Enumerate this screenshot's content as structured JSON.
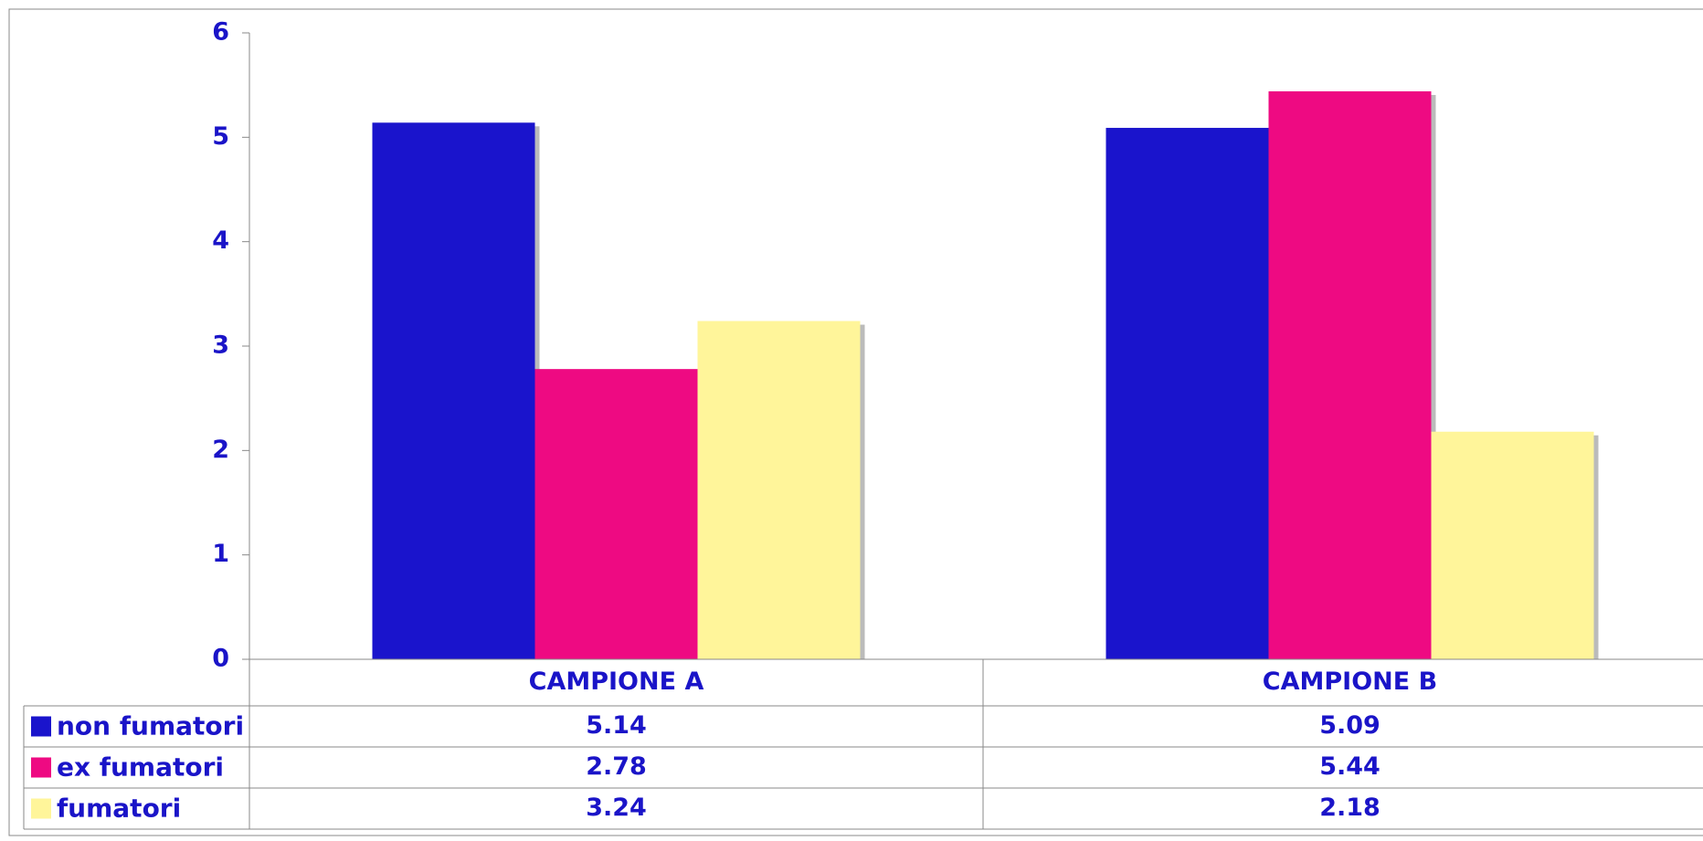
{
  "chart_data": {
    "type": "bar",
    "categories": [
      "CAMPIONE A",
      "CAMPIONE B"
    ],
    "series": [
      {
        "name": "non fumatori",
        "color": "#1a14cc",
        "values": [
          5.14,
          5.09
        ]
      },
      {
        "name": "ex fumatori",
        "color": "#ee0a82",
        "values": [
          2.78,
          5.44
        ]
      },
      {
        "name": "fumatori",
        "color": "#fff59a",
        "values": [
          3.24,
          2.18
        ]
      }
    ],
    "ylim": [
      0,
      6
    ],
    "yticks": [
      0,
      1,
      2,
      3,
      4,
      5,
      6
    ],
    "grid": false,
    "data_table": true
  }
}
